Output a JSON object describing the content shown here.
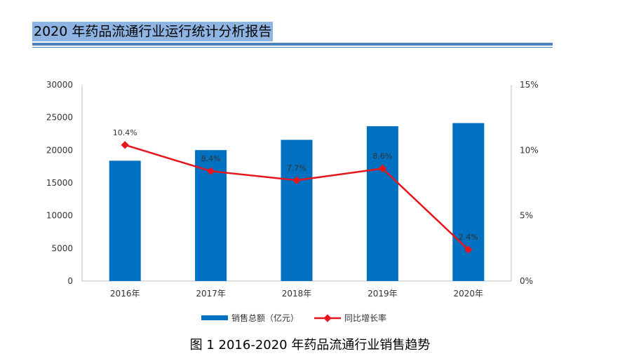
{
  "header": {
    "title": "2020 年药品流通行业运行统计分析报告"
  },
  "caption": "图 1   2016-2020 年药品流通行业销售趋势",
  "colors": {
    "bar": "#0070c0",
    "line": "#e8141c",
    "header_bg": "#8db4e2",
    "rule": "#4f81bd"
  },
  "chart_data": {
    "type": "bar",
    "categories": [
      "2016年",
      "2017年",
      "2018年",
      "2019年",
      "2020年"
    ],
    "series": [
      {
        "name": "销售总额（亿元）",
        "type": "bar",
        "axis": "left",
        "values": [
          18393,
          20016,
          21586,
          23667,
          24149
        ]
      },
      {
        "name": "同比增长率",
        "type": "line",
        "axis": "right",
        "values": [
          10.4,
          8.4,
          7.7,
          8.6,
          2.4
        ],
        "labels": [
          "10.4%",
          "8.4%",
          "7.7%",
          "8.6%",
          "2.4%"
        ]
      }
    ],
    "y_left": {
      "ylim": [
        0,
        30000
      ],
      "ticks": [
        "0",
        "5000",
        "10000",
        "15000",
        "20000",
        "25000",
        "30000"
      ]
    },
    "y_right": {
      "ylim": [
        0,
        15
      ],
      "ticks": [
        "0%",
        "5%",
        "10%",
        "15%"
      ]
    },
    "grid": false,
    "legend_position": "bottom"
  }
}
